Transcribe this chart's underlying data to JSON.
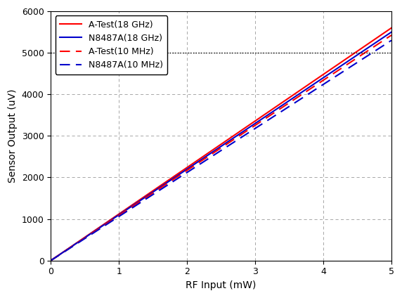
{
  "title": "",
  "xlabel": "RF Input (mW)",
  "ylabel": "Sensor Output (uV)",
  "xlim": [
    0,
    5
  ],
  "ylim": [
    0,
    6000
  ],
  "xticks": [
    0,
    1,
    2,
    3,
    4,
    5
  ],
  "yticks": [
    0,
    1000,
    2000,
    3000,
    4000,
    5000,
    6000
  ],
  "hline_y": 5000,
  "hline_color": "#000000",
  "series": [
    {
      "label": "A-Test(18 GHz)",
      "color": "#ff0000",
      "linestyle": "solid",
      "linewidth": 1.5,
      "slope": 1120
    },
    {
      "label": "N8487A(18 GHz)",
      "color": "#0000cc",
      "linestyle": "solid",
      "linewidth": 1.5,
      "slope": 1100
    },
    {
      "label": "A-Test(10 MHz)",
      "color": "#ff0000",
      "linestyle": "dashed",
      "linewidth": 1.5,
      "slope": 1085
    },
    {
      "label": "N8487A(10 MHz)",
      "color": "#0000cc",
      "linestyle": "dashed",
      "linewidth": 1.5,
      "slope": 1060
    }
  ],
  "grid_color": "#999999",
  "grid_linewidth": 0.6,
  "background_color": "#ffffff",
  "legend_fontsize": 9,
  "axis_fontsize": 10,
  "tick_fontsize": 9,
  "figsize": [
    5.72,
    4.24
  ],
  "dpi": 100
}
